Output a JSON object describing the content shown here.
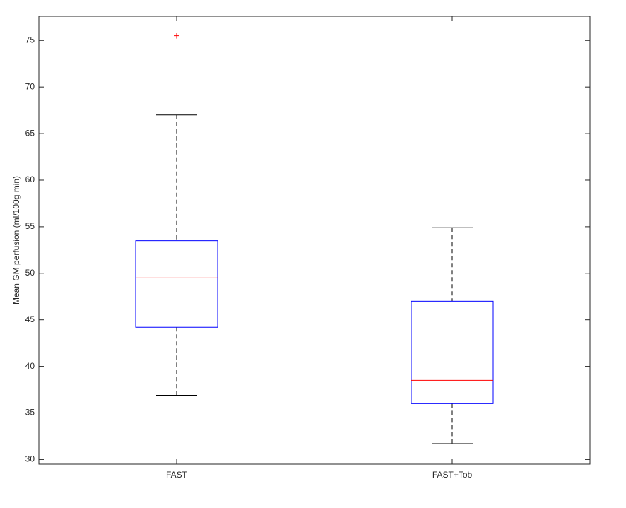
{
  "chart_data": {
    "type": "box",
    "ylabel": "Mean GM perfusion (ml/100g min)",
    "categories": [
      "FAST",
      "FAST+Tob"
    ],
    "boxes": [
      {
        "min": 36.9,
        "q1": 44.2,
        "median": 49.5,
        "q3": 53.5,
        "max": 67.0,
        "outliers": [
          75.5
        ]
      },
      {
        "min": 31.7,
        "q1": 36.0,
        "median": 38.5,
        "q3": 47.0,
        "max": 54.9,
        "outliers": []
      }
    ],
    "box_color": "#0000ff",
    "median_color": "#ff0000",
    "whisker_color": "#000000",
    "outlier_color": "#ff0000",
    "ylim": [
      29.5,
      77.6
    ],
    "yticks": [
      30,
      35,
      40,
      45,
      50,
      55,
      60,
      65,
      70,
      75
    ]
  }
}
